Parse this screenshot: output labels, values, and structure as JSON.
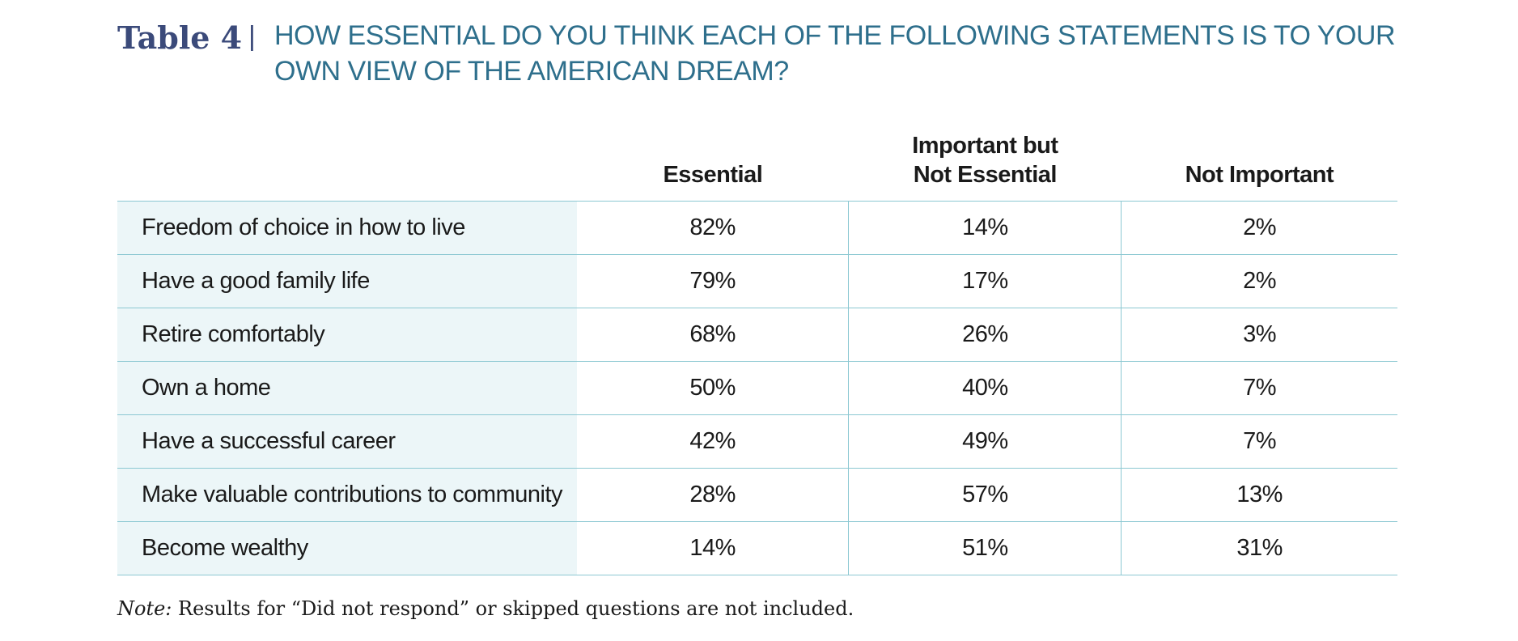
{
  "header": {
    "table_label": "Table 4",
    "divider": "|",
    "title_line1": "HOW ESSENTIAL DO YOU THINK EACH OF THE FOLLOWING STATEMENTS IS TO YOUR",
    "title_line2": "OWN VIEW OF THE AMERICAN DREAM?"
  },
  "columns": {
    "essential": "Essential",
    "important_line1": "Important but",
    "important_line2": "Not Essential",
    "not_important": "Not Important"
  },
  "rows": [
    {
      "label": "Freedom of choice in how to live",
      "essential": "82%",
      "important": "14%",
      "not_important": "2%"
    },
    {
      "label": "Have a good family life",
      "essential": "79%",
      "important": "17%",
      "not_important": "2%"
    },
    {
      "label": "Retire comfortably",
      "essential": "68%",
      "important": "26%",
      "not_important": "3%"
    },
    {
      "label": "Own a home",
      "essential": "50%",
      "important": "40%",
      "not_important": "7%"
    },
    {
      "label": "Have a successful career",
      "essential": "42%",
      "important": "49%",
      "not_important": "7%"
    },
    {
      "label": "Make valuable contributions to community",
      "essential": "28%",
      "important": "57%",
      "not_important": "13%"
    },
    {
      "label": "Become wealthy",
      "essential": "14%",
      "important": "51%",
      "not_important": "31%"
    }
  ],
  "note": {
    "prefix": "Note:",
    "text": " Results for “Did not respond” or skipped questions are not included."
  },
  "colors": {
    "label_navy": "#3b4a7a",
    "title_teal": "#2e6f8c",
    "rule_teal": "#8cc8d2",
    "row_label_bg": "#ecf6f8"
  }
}
